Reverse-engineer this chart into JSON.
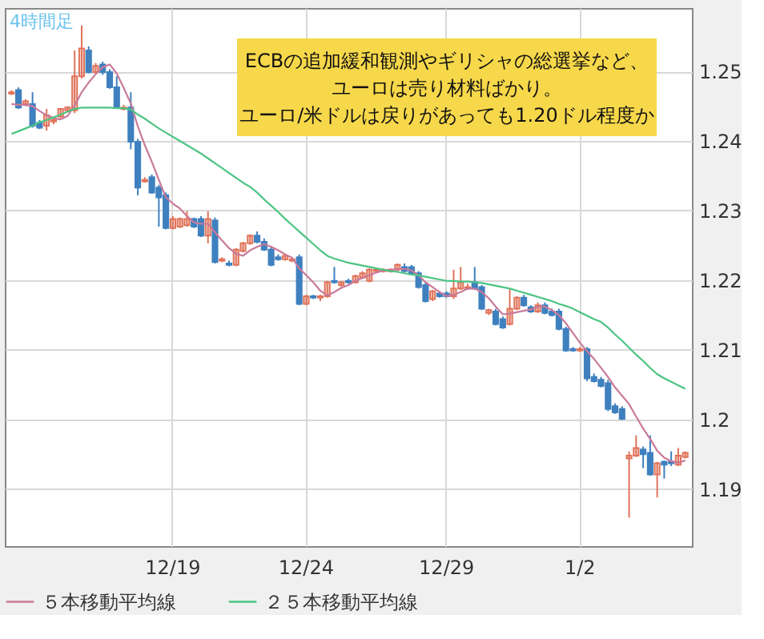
{
  "chart_data": {
    "type": "candlestick",
    "title": "4時間足",
    "annotations": [
      "ECBの追加緩和観測やギリシャの総選挙など、",
      "ユーロは売り材料ばかり。",
      "ユーロ/米ドルは戻りがあっても1.20ドル程度か"
    ],
    "categories": [
      null,
      null,
      null,
      null,
      null,
      null,
      null,
      null,
      null,
      null,
      null,
      null,
      null,
      null,
      null,
      null,
      null,
      null,
      null,
      null,
      null,
      null,
      null,
      "12/19",
      null,
      null,
      null,
      null,
      null,
      null,
      null,
      null,
      null,
      null,
      null,
      null,
      null,
      null,
      null,
      null,
      null,
      null,
      "12/24",
      null,
      null,
      null,
      null,
      null,
      null,
      null,
      null,
      null,
      null,
      null,
      null,
      null,
      null,
      null,
      null,
      null,
      null,
      null,
      "12/29",
      null,
      null,
      null,
      null,
      null,
      null,
      null,
      null,
      null,
      null,
      null,
      null,
      null,
      null,
      null,
      null,
      null,
      null,
      "1/2",
      null,
      null,
      null,
      null,
      null,
      null,
      null,
      null,
      null,
      null,
      null,
      null,
      null,
      null,
      null
    ],
    "ohlc": [
      [
        1.2468,
        1.2473,
        1.2466,
        1.247
      ],
      [
        1.2473,
        1.2477,
        1.2446,
        1.2448
      ],
      [
        1.2453,
        1.246,
        1.245,
        1.2457
      ],
      [
        1.2453,
        1.247,
        1.2419,
        1.2422
      ],
      [
        1.2426,
        1.243,
        1.2417,
        1.2419
      ],
      [
        1.2422,
        1.2446,
        1.2415,
        1.2437
      ],
      [
        1.2428,
        1.2433,
        1.2424,
        1.243
      ],
      [
        1.2435,
        1.2446,
        1.2433,
        1.2446
      ],
      [
        1.2444,
        1.245,
        1.2442,
        1.2448
      ],
      [
        1.2444,
        1.253,
        1.244,
        1.2493
      ],
      [
        1.2493,
        1.2566,
        1.249,
        1.2533
      ],
      [
        1.253,
        1.2536,
        1.2497,
        1.2499
      ],
      [
        1.2499,
        1.2512,
        1.2497,
        1.2508
      ],
      [
        1.251,
        1.2514,
        1.2495,
        1.2499
      ],
      [
        1.2499,
        1.2503,
        1.2475,
        1.2477
      ],
      [
        1.2477,
        1.2493,
        1.2446,
        1.2448
      ],
      [
        1.2446,
        1.2452,
        1.2444,
        1.2448
      ],
      [
        1.2448,
        1.247,
        1.2388,
        1.2399
      ],
      [
        1.2399,
        1.2403,
        1.2322,
        1.2333
      ],
      [
        1.2342,
        1.2348,
        1.234,
        1.2344
      ],
      [
        1.2348,
        1.2352,
        1.2324,
        1.2326
      ],
      [
        1.2333,
        1.2337,
        1.2277,
        1.2319
      ],
      [
        1.2322,
        1.2326,
        1.2273,
        1.2275
      ],
      [
        1.2275,
        1.2292,
        1.2273,
        1.2288
      ],
      [
        1.2277,
        1.229,
        1.2275,
        1.2288
      ],
      [
        1.2279,
        1.2299,
        1.2277,
        1.2288
      ],
      [
        1.2288,
        1.229,
        1.2275,
        1.2277
      ],
      [
        1.2288,
        1.2292,
        1.2262,
        1.2264
      ],
      [
        1.2264,
        1.2299,
        1.2253,
        1.2288
      ],
      [
        1.2286,
        1.229,
        1.2224,
        1.2226
      ],
      [
        1.2228,
        1.2233,
        1.2226,
        1.223
      ],
      [
        1.2224,
        1.2228,
        1.222,
        1.2222
      ],
      [
        1.2222,
        1.2246,
        1.222,
        1.2244
      ],
      [
        1.2242,
        1.2255,
        1.224,
        1.2253
      ],
      [
        1.2253,
        1.2266,
        1.2251,
        1.2264
      ],
      [
        1.2264,
        1.227,
        1.2253,
        1.2255
      ],
      [
        1.2255,
        1.226,
        1.2242,
        1.2244
      ],
      [
        1.2244,
        1.2248,
        1.222,
        1.2222
      ],
      [
        1.2233,
        1.2237,
        1.2228,
        1.223
      ],
      [
        1.223,
        1.2237,
        1.2228,
        1.2235
      ],
      [
        1.2228,
        1.2233,
        1.2226,
        1.223
      ],
      [
        1.2233,
        1.2237,
        1.2164,
        1.2166
      ],
      [
        1.2166,
        1.2179,
        1.2164,
        1.2177
      ],
      [
        1.2177,
        1.2179,
        1.2173,
        1.2175
      ],
      [
        1.2175,
        1.2179,
        1.217,
        1.2177
      ],
      [
        1.2177,
        1.2199,
        1.2175,
        1.2197
      ],
      [
        1.2199,
        1.2219,
        1.2195,
        1.2197
      ],
      [
        1.2193,
        1.2199,
        1.219,
        1.2197
      ],
      [
        1.2199,
        1.2202,
        1.2195,
        1.2197
      ],
      [
        1.2197,
        1.2208,
        1.2195,
        1.2206
      ],
      [
        1.2204,
        1.2213,
        1.2202,
        1.221
      ],
      [
        1.2199,
        1.2217,
        1.2197,
        1.2215
      ],
      [
        1.2213,
        1.2217,
        1.2211,
        1.2215
      ],
      [
        1.2213,
        1.2217,
        1.2211,
        1.2215
      ],
      [
        1.2213,
        1.2217,
        1.2211,
        1.2215
      ],
      [
        1.2215,
        1.2224,
        1.2213,
        1.2222
      ],
      [
        1.2219,
        1.2224,
        1.2211,
        1.2213
      ],
      [
        1.2219,
        1.2222,
        1.2208,
        1.221
      ],
      [
        1.221,
        1.2213,
        1.2188,
        1.219
      ],
      [
        1.2193,
        1.2197,
        1.2168,
        1.217
      ],
      [
        1.2173,
        1.2186,
        1.217,
        1.2184
      ],
      [
        1.2181,
        1.2184,
        1.2175,
        1.2177
      ],
      [
        1.2181,
        1.2184,
        1.2175,
        1.2177
      ],
      [
        1.2177,
        1.2215,
        1.2173,
        1.2188
      ],
      [
        1.2188,
        1.2219,
        1.2186,
        1.2197
      ],
      [
        1.2188,
        1.2195,
        1.2186,
        1.219
      ],
      [
        1.2197,
        1.2219,
        1.2186,
        1.2188
      ],
      [
        1.219,
        1.2193,
        1.2157,
        1.2159
      ],
      [
        1.2153,
        1.2159,
        1.215,
        1.2157
      ],
      [
        1.2155,
        1.2159,
        1.2135,
        1.2137
      ],
      [
        1.2144,
        1.2148,
        1.213,
        1.2132
      ],
      [
        1.2137,
        1.2188,
        1.2135,
        1.2159
      ],
      [
        1.2159,
        1.2177,
        1.2157,
        1.2175
      ],
      [
        1.2175,
        1.2179,
        1.2162,
        1.2164
      ],
      [
        1.2161,
        1.2164,
        1.2153,
        1.2155
      ],
      [
        1.2155,
        1.2168,
        1.2153,
        1.2164
      ],
      [
        1.2164,
        1.2168,
        1.2151,
        1.2153
      ],
      [
        1.2155,
        1.2159,
        1.2148,
        1.215
      ],
      [
        1.2155,
        1.2159,
        1.2128,
        1.213
      ],
      [
        1.213,
        1.2133,
        1.2097,
        1.2099
      ],
      [
        1.2101,
        1.2104,
        1.2097,
        1.2099
      ],
      [
        1.2099,
        1.2104,
        1.2097,
        1.2101
      ],
      [
        1.2101,
        1.2104,
        1.2055,
        1.2059
      ],
      [
        1.2061,
        1.2066,
        1.2053,
        1.2055
      ],
      [
        1.2057,
        1.2061,
        1.2046,
        1.2048
      ],
      [
        1.2052,
        1.2057,
        1.2012,
        1.2015
      ],
      [
        1.2019,
        1.2023,
        1.2008,
        1.201
      ],
      [
        1.2015,
        1.2019,
        1.1999,
        1.2001
      ],
      [
        1.1944,
        1.1954,
        1.1859,
        1.1948
      ],
      [
        1.1948,
        1.1977,
        1.1946,
        1.1959
      ],
      [
        1.1957,
        1.1961,
        1.193,
        1.195
      ],
      [
        1.1952,
        1.1977,
        1.1919,
        1.1921
      ],
      [
        1.1921,
        1.1939,
        1.1888,
        1.1937
      ],
      [
        1.1939,
        1.1941,
        1.1915,
        1.1935
      ],
      [
        1.1939,
        1.1954,
        1.1933,
        1.1937
      ],
      [
        1.1935,
        1.1959,
        1.1933,
        1.1948
      ],
      [
        1.1946,
        1.1954,
        1.1944,
        1.1952
      ]
    ],
    "colors": [
      "#e0735a",
      "#3f80bf",
      "#e0735a",
      "#3f80bf",
      "#3f80bf",
      "#e0735a",
      "#e0735a",
      "#e0735a",
      "#e0735a",
      "#e0735a",
      "#e0735a",
      "#3f80bf",
      "#e0735a",
      "#3f80bf",
      "#3f80bf",
      "#3f80bf",
      "#e0735a",
      "#3f80bf",
      "#3f80bf",
      "#e0735a",
      "#3f80bf",
      "#3f80bf",
      "#3f80bf",
      "#e0735a",
      "#e0735a",
      "#e0735a",
      "#3f80bf",
      "#3f80bf",
      "#e0735a",
      "#3f80bf",
      "#e0735a",
      "#3f80bf",
      "#e0735a",
      "#e0735a",
      "#e0735a",
      "#3f80bf",
      "#3f80bf",
      "#3f80bf",
      "#3f80bf",
      "#e0735a",
      "#e0735a",
      "#3f80bf",
      "#e0735a",
      "#3f80bf",
      "#e0735a",
      "#e0735a",
      "#3f80bf",
      "#e0735a",
      "#3f80bf",
      "#e0735a",
      "#e0735a",
      "#e0735a",
      "#e0735a",
      "#e0735a",
      "#e0735a",
      "#e0735a",
      "#3f80bf",
      "#3f80bf",
      "#3f80bf",
      "#3f80bf",
      "#e0735a",
      "#3f80bf",
      "#3f80bf",
      "#e0735a",
      "#e0735a",
      "#e0735a",
      "#3f80bf",
      "#3f80bf",
      "#e0735a",
      "#3f80bf",
      "#3f80bf",
      "#e0735a",
      "#e0735a",
      "#3f80bf",
      "#3f80bf",
      "#e0735a",
      "#3f80bf",
      "#3f80bf",
      "#3f80bf",
      "#3f80bf",
      "#3f80bf",
      "#e0735a",
      "#3f80bf",
      "#3f80bf",
      "#3f80bf",
      "#3f80bf",
      "#3f80bf",
      "#3f80bf",
      "#e0735a",
      "#e0735a",
      "#3f80bf",
      "#3f80bf",
      "#e0735a",
      "#3f80bf",
      "#3f80bf",
      "#e0735a",
      "#e0735a"
    ],
    "series": [
      {
        "type": "line",
        "name": "５本移動平均線",
        "color": "#c97a9a",
        "values": [
          1.2453,
          1.2452,
          1.2452,
          1.245,
          1.2443,
          1.2437,
          1.2433,
          1.2431,
          1.2436,
          1.2451,
          1.247,
          1.2484,
          1.2496,
          1.2506,
          1.251,
          1.2497,
          1.2476,
          1.2454,
          1.2421,
          1.2394,
          1.237,
          1.2344,
          1.2319,
          1.231,
          1.2303,
          1.2292,
          1.2283,
          1.2281,
          1.2281,
          1.2269,
          1.2257,
          1.2246,
          1.2238,
          1.2235,
          1.2243,
          1.2248,
          1.2252,
          1.2248,
          1.2243,
          1.2237,
          1.2232,
          1.2217,
          1.2207,
          1.2197,
          1.2185,
          1.2178,
          1.2183,
          1.2189,
          1.2193,
          1.2199,
          1.2203,
          1.2207,
          1.2211,
          1.2214,
          1.2215,
          1.2216,
          1.2216,
          1.2214,
          1.2207,
          1.2197,
          1.219,
          1.2183,
          1.2177,
          1.2179,
          1.2183,
          1.2188,
          1.2188,
          1.2183,
          1.2174,
          1.2162,
          1.2151,
          1.2152,
          1.2154,
          1.2156,
          1.2158,
          1.2162,
          1.2162,
          1.2157,
          1.215,
          1.2138,
          1.2124,
          1.211,
          1.2098,
          1.2087,
          1.2074,
          1.2061,
          1.2046,
          1.2034,
          1.2022,
          1.2004,
          1.1987,
          1.1972,
          1.1955,
          1.1945,
          1.194,
          1.1938,
          1.1941
        ]
      },
      {
        "type": "line",
        "name": "２５本移動平均線",
        "color": "#4cc483",
        "values": [
          1.241,
          1.2414,
          1.2418,
          1.2422,
          1.2427,
          1.243,
          1.2434,
          1.2438,
          1.2442,
          1.2446,
          1.2448,
          1.2448,
          1.2448,
          1.2448,
          1.2448,
          1.2447,
          1.2447,
          1.2445,
          1.2438,
          1.2432,
          1.2425,
          1.2418,
          1.2412,
          1.2406,
          1.24,
          1.2394,
          1.2388,
          1.2382,
          1.2375,
          1.2368,
          1.2361,
          1.2354,
          1.2347,
          1.234,
          1.2334,
          1.2326,
          1.2316,
          1.2307,
          1.2298,
          1.2288,
          1.2279,
          1.227,
          1.2261,
          1.2252,
          1.2243,
          1.2235,
          1.2231,
          1.2228,
          1.2225,
          1.2223,
          1.2221,
          1.2219,
          1.2217,
          1.2215,
          1.2213,
          1.2212,
          1.221,
          1.2208,
          1.2207,
          1.2205,
          1.2203,
          1.2201,
          1.2199,
          1.2199,
          1.2198,
          1.2198,
          1.2197,
          1.2196,
          1.2194,
          1.2192,
          1.219,
          1.2188,
          1.2185,
          1.2182,
          1.2179,
          1.2176,
          1.2173,
          1.217,
          1.2166,
          1.2163,
          1.2159,
          1.2154,
          1.2149,
          1.2144,
          1.214,
          1.2132,
          1.2122,
          1.2113,
          1.2103,
          1.2093,
          1.2084,
          1.2074,
          1.2065,
          1.2059,
          1.2054,
          1.2049,
          1.2044
        ]
      }
    ],
    "ylim": [
      1.1818,
      1.2591
    ],
    "yticks": [
      1.19,
      1.2,
      1.21,
      1.22,
      1.23,
      1.24,
      1.25
    ],
    "grid": true,
    "legend": "bottom"
  }
}
